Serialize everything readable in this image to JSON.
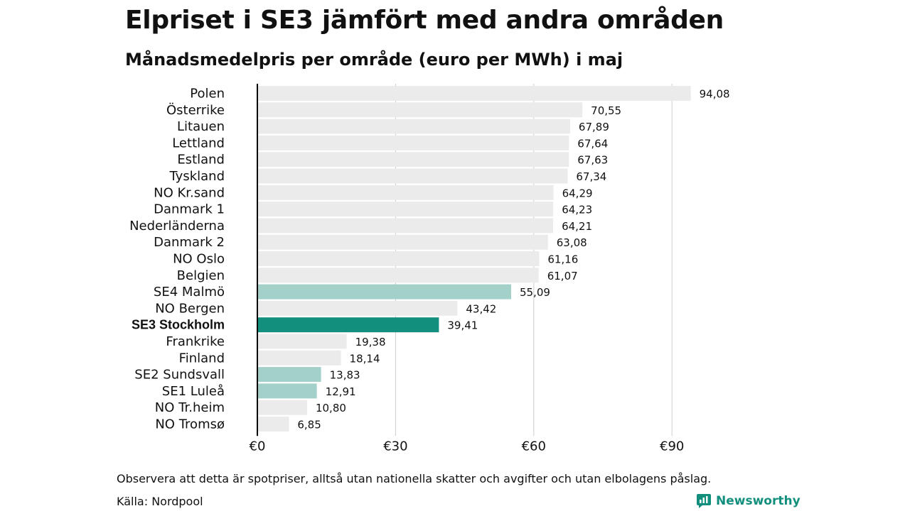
{
  "chart_data": {
    "type": "bar",
    "orientation": "horizontal",
    "title": "Elpriset i SE3 jämfört med andra områden",
    "subtitle": "Månadsmedelpris per område (euro per MWh) i maj",
    "xlim": [
      0,
      100
    ],
    "ticks": [
      0,
      30,
      60,
      90
    ],
    "tick_labels": [
      "€0",
      "€30",
      "€60",
      "€90"
    ],
    "grid": true,
    "colors": {
      "default": "#ebebeb",
      "swedish": "#a4d0ca",
      "highlight": "#138f7e",
      "grid": "#cccccc",
      "axis": "#000000"
    },
    "categories": [
      "Polen",
      "Österrike",
      "Litauen",
      "Lettland",
      "Estland",
      "Tyskland",
      "NO Kr.sand",
      "Danmark 1",
      "Nederländerna",
      "Danmark 2",
      "NO Oslo",
      "Belgien",
      "SE4 Malmö",
      "NO Bergen",
      "SE3 Stockholm",
      "Frankrike",
      "Finland",
      "SE2 Sundsvall",
      "SE1 Luleå",
      "NO Tr.heim",
      "NO Tromsø"
    ],
    "values": [
      94.08,
      70.55,
      67.89,
      67.64,
      67.63,
      67.34,
      64.29,
      64.23,
      64.21,
      63.08,
      61.16,
      61.07,
      55.09,
      43.42,
      39.41,
      19.38,
      18.14,
      13.83,
      12.91,
      10.8,
      6.85
    ],
    "value_labels": [
      "94,08",
      "70,55",
      "67,89",
      "67,64",
      "67,63",
      "67,34",
      "64,29",
      "64,23",
      "64,21",
      "63,08",
      "61,16",
      "61,07",
      "55,09",
      "43,42",
      "39,41",
      "19,38",
      "18,14",
      "13,83",
      "12,91",
      "10,80",
      "6,85"
    ],
    "bar_style": [
      "default",
      "default",
      "default",
      "default",
      "default",
      "default",
      "default",
      "default",
      "default",
      "default",
      "default",
      "default",
      "swedish",
      "default",
      "highlight",
      "default",
      "default",
      "swedish",
      "swedish",
      "default",
      "default"
    ],
    "bold_category": "SE3 Stockholm"
  },
  "footer": {
    "note": "Observera att detta är spotpriser, alltså utan nationella skatter och avgifter och utan elbolagens påslag.",
    "source": "Källa: Nordpool",
    "brand": "Newsworthy"
  }
}
